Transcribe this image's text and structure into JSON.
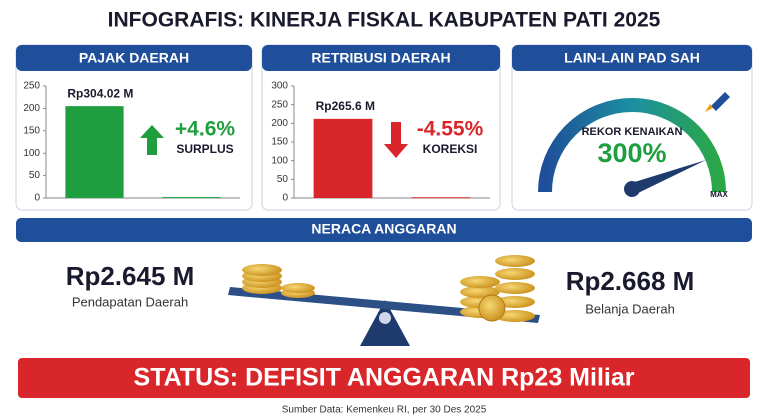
{
  "title": "INFOGRAFIS: KINERJA FISKAL KABUPATEN PATI 2025",
  "panels": [
    {
      "header": "PAJAK DAERAH",
      "change": "+4.6%",
      "change_label": "SURPLUS"
    },
    {
      "header": "RETRIBUSI DAERAH",
      "change": "-4.55%",
      "change_label": "KOREKSI"
    },
    {
      "header": "LAIN-LAIN PAD SAH",
      "gauge_label": "REKOR KENAIKAN",
      "gauge_value": "300%",
      "gauge_max": "MAX"
    }
  ],
  "chart_data": [
    {
      "type": "bar",
      "annotation": "Rp304.02 M",
      "categories": [
        null,
        null
      ],
      "values": [
        205,
        2
      ],
      "color": "#1f9e3f",
      "ylim": [
        0,
        250
      ],
      "yticks": [
        0,
        50,
        100,
        150,
        200,
        250
      ]
    },
    {
      "type": "bar",
      "annotation": "Rp265.6 M",
      "categories": [
        null,
        null
      ],
      "values": [
        212,
        2
      ],
      "color": "#d9262b",
      "ylim": [
        0,
        300
      ],
      "yticks": [
        0,
        50,
        100,
        150,
        200,
        250,
        300
      ]
    }
  ],
  "balance": {
    "header": "NERACA ANGGARAN",
    "left_value": "Rp2.645 M",
    "left_label": "Pendapatan Daerah",
    "right_value": "Rp2.668 M",
    "right_label": "Belanja Daerah"
  },
  "status": "STATUS: DEFISIT ANGGARAN Rp23 Miliar",
  "source": "Sumber Data: Kemenkeu RI, per 30 Des 2025"
}
